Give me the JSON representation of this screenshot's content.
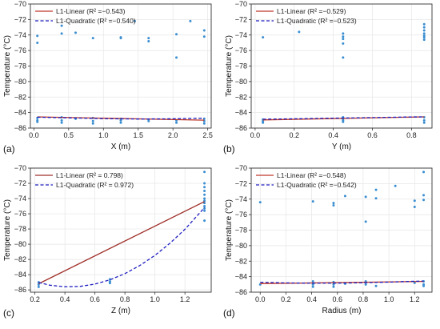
{
  "chart_data": [
    {
      "type": "scatter",
      "panel_label": "(a)",
      "xlabel": "X (m)",
      "ylabel": "Temperature (°C)",
      "xlim": [
        -0.05,
        2.55
      ],
      "ylim": [
        -86,
        -70
      ],
      "xticks": [
        0.0,
        0.5,
        1.0,
        1.5,
        2.0,
        2.5
      ],
      "xtick_labels": [
        "0.0",
        "0.5",
        "1.0",
        "1.5",
        "2.0",
        "2.5"
      ],
      "yticks": [
        -86,
        -84,
        -82,
        -80,
        -78,
        -76,
        -74,
        -72,
        -70
      ],
      "grid": true,
      "legend_position": "top-left",
      "points": [
        {
          "x": 0.05,
          "y": -74.1
        },
        {
          "x": 0.05,
          "y": -75.0
        },
        {
          "x": 0.05,
          "y": -84.7
        },
        {
          "x": 0.05,
          "y": -85.0
        },
        {
          "x": 0.05,
          "y": -85.2
        },
        {
          "x": 0.4,
          "y": -72.8
        },
        {
          "x": 0.4,
          "y": -73.8
        },
        {
          "x": 0.4,
          "y": -84.6
        },
        {
          "x": 0.4,
          "y": -85.0
        },
        {
          "x": 0.4,
          "y": -85.3
        },
        {
          "x": 0.6,
          "y": -73.7
        },
        {
          "x": 0.6,
          "y": -84.8
        },
        {
          "x": 0.85,
          "y": -74.4
        },
        {
          "x": 0.85,
          "y": -84.7
        },
        {
          "x": 0.85,
          "y": -85.1
        },
        {
          "x": 0.85,
          "y": -85.4
        },
        {
          "x": 1.25,
          "y": -74.3
        },
        {
          "x": 1.25,
          "y": -74.4
        },
        {
          "x": 1.25,
          "y": -84.8
        },
        {
          "x": 1.25,
          "y": -85.0
        },
        {
          "x": 1.25,
          "y": -85.3
        },
        {
          "x": 1.45,
          "y": -72.2
        },
        {
          "x": 1.65,
          "y": -74.4
        },
        {
          "x": 1.65,
          "y": -74.8
        },
        {
          "x": 1.65,
          "y": -84.9
        },
        {
          "x": 1.65,
          "y": -85.1
        },
        {
          "x": 2.05,
          "y": -73.9
        },
        {
          "x": 2.05,
          "y": -76.9
        },
        {
          "x": 2.05,
          "y": -85.0
        },
        {
          "x": 2.05,
          "y": -85.3
        },
        {
          "x": 2.25,
          "y": -72.2
        },
        {
          "x": 2.45,
          "y": -73.4
        },
        {
          "x": 2.45,
          "y": -74.2
        },
        {
          "x": 2.45,
          "y": -84.8
        },
        {
          "x": 2.45,
          "y": -85.1
        },
        {
          "x": 2.45,
          "y": -85.4
        }
      ],
      "series": [
        {
          "name": "L1-Linear (R² =−0.543)",
          "style": "solid",
          "color": "#c0392b",
          "x": [
            0.05,
            2.45
          ],
          "y": [
            -84.55,
            -84.98
          ]
        },
        {
          "name": "L1-Quadratic (R² =−0.540)",
          "style": "dashed",
          "color": "#1f1fbf",
          "x": [
            0.05,
            0.5,
            1.0,
            1.5,
            2.0,
            2.45
          ],
          "y": [
            -84.6,
            -84.68,
            -84.78,
            -84.83,
            -84.8,
            -84.72
          ]
        }
      ]
    },
    {
      "type": "scatter",
      "panel_label": "(b)",
      "xlabel": "Y (m)",
      "ylabel": "Temperature (°C)",
      "xlim": [
        -0.02,
        0.905
      ],
      "ylim": [
        -86,
        -70
      ],
      "xticks": [
        0.0,
        0.2,
        0.4,
        0.6,
        0.8
      ],
      "xtick_labels": [
        "0.0",
        "0.2",
        "0.4",
        "0.6",
        "0.8"
      ],
      "yticks": [
        -86,
        -84,
        -82,
        -80,
        -78,
        -76,
        -74,
        -72,
        -70
      ],
      "grid": true,
      "legend_position": "top-left",
      "points": [
        {
          "x": 0.04,
          "y": -74.3
        },
        {
          "x": 0.04,
          "y": -84.9
        },
        {
          "x": 0.04,
          "y": -85.1
        },
        {
          "x": 0.04,
          "y": -85.3
        },
        {
          "x": 0.225,
          "y": -73.6
        },
        {
          "x": 0.45,
          "y": -73.8
        },
        {
          "x": 0.45,
          "y": -74.2
        },
        {
          "x": 0.45,
          "y": -74.5
        },
        {
          "x": 0.45,
          "y": -75.1
        },
        {
          "x": 0.45,
          "y": -76.9
        },
        {
          "x": 0.45,
          "y": -84.6
        },
        {
          "x": 0.45,
          "y": -84.8
        },
        {
          "x": 0.45,
          "y": -85.0
        },
        {
          "x": 0.45,
          "y": -85.2
        },
        {
          "x": 0.865,
          "y": -72.6
        },
        {
          "x": 0.865,
          "y": -73.0
        },
        {
          "x": 0.865,
          "y": -73.4
        },
        {
          "x": 0.865,
          "y": -73.8
        },
        {
          "x": 0.865,
          "y": -74.1
        },
        {
          "x": 0.865,
          "y": -74.3
        },
        {
          "x": 0.865,
          "y": -74.6
        },
        {
          "x": 0.865,
          "y": -84.6
        },
        {
          "x": 0.865,
          "y": -85.0
        },
        {
          "x": 0.865,
          "y": -85.3
        }
      ],
      "series": [
        {
          "name": "L1-Linear (R² =−0.529)",
          "style": "solid",
          "color": "#c0392b",
          "x": [
            0.04,
            0.865
          ],
          "y": [
            -84.95,
            -84.55
          ]
        },
        {
          "name": "L1-Quadratic (R² =−0.523)",
          "style": "dashed",
          "color": "#1f1fbf",
          "x": [
            0.04,
            0.2,
            0.4,
            0.6,
            0.8,
            0.865
          ],
          "y": [
            -84.85,
            -84.8,
            -84.72,
            -84.65,
            -84.57,
            -84.55
          ]
        }
      ]
    },
    {
      "type": "scatter",
      "panel_label": "(c)",
      "xlabel": "Z (m)",
      "ylabel": "Temperature (°C)",
      "xlim": [
        0.17,
        1.375
      ],
      "ylim": [
        -86.3,
        -70
      ],
      "xticks": [
        0.2,
        0.4,
        0.6,
        0.8,
        1.0,
        1.2
      ],
      "xtick_labels": [
        "0.2",
        "0.4",
        "0.6",
        "0.8",
        "1.0",
        "1.2"
      ],
      "yticks": [
        -86,
        -84,
        -82,
        -80,
        -78,
        -76,
        -74,
        -72,
        -70
      ],
      "grid": true,
      "legend_position": "top-left",
      "points": [
        {
          "x": 0.225,
          "y": -85.0
        },
        {
          "x": 0.225,
          "y": -85.3
        },
        {
          "x": 0.225,
          "y": -85.6
        },
        {
          "x": 0.7,
          "y": -84.6
        },
        {
          "x": 0.7,
          "y": -84.9
        },
        {
          "x": 0.7,
          "y": -85.1
        },
        {
          "x": 1.33,
          "y": -70.5
        },
        {
          "x": 1.33,
          "y": -72.0
        },
        {
          "x": 1.33,
          "y": -72.5
        },
        {
          "x": 1.33,
          "y": -73.0
        },
        {
          "x": 1.33,
          "y": -73.5
        },
        {
          "x": 1.33,
          "y": -74.0
        },
        {
          "x": 1.33,
          "y": -74.3
        },
        {
          "x": 1.33,
          "y": -74.6
        },
        {
          "x": 1.33,
          "y": -75.0
        },
        {
          "x": 1.33,
          "y": -75.3
        },
        {
          "x": 1.33,
          "y": -75.6
        },
        {
          "x": 1.33,
          "y": -76.9
        }
      ],
      "series": [
        {
          "name": "L1-Linear (R² = 0.798)",
          "style": "solid",
          "color": "#a0302a",
          "x": [
            0.225,
            1.33
          ],
          "y": [
            -85.2,
            -74.4
          ]
        },
        {
          "name": "L1-Quadratic (R² = 0.972)",
          "style": "dashed",
          "color": "#1f1fbf",
          "x": [
            0.225,
            0.3,
            0.4,
            0.5,
            0.6,
            0.7,
            0.8,
            0.9,
            1.0,
            1.1,
            1.2,
            1.33
          ],
          "y": [
            -85.03,
            -85.38,
            -85.59,
            -85.54,
            -85.24,
            -84.68,
            -83.86,
            -82.79,
            -81.46,
            -79.87,
            -78.03,
            -75.2
          ]
        }
      ]
    },
    {
      "type": "scatter",
      "panel_label": "(d)",
      "xlabel": "Radius (m)",
      "ylabel": "Temperature (°C)",
      "xlim": [
        -0.07,
        1.335
      ],
      "ylim": [
        -86,
        -70
      ],
      "xticks": [
        0.0,
        0.2,
        0.4,
        0.6,
        0.8,
        1.0,
        1.2
      ],
      "xtick_labels": [
        "0.0",
        "0.2",
        "0.4",
        "0.6",
        "0.8",
        "1.0",
        "1.2"
      ],
      "yticks": [
        -86,
        -84,
        -82,
        -80,
        -78,
        -76,
        -74,
        -72,
        -70
      ],
      "grid": true,
      "legend_position": "top-left",
      "points": [
        {
          "x": 0.0,
          "y": -74.4
        },
        {
          "x": 0.0,
          "y": -85.0
        },
        {
          "x": 0.41,
          "y": -74.3
        },
        {
          "x": 0.41,
          "y": -84.6
        },
        {
          "x": 0.41,
          "y": -85.0
        },
        {
          "x": 0.41,
          "y": -85.3
        },
        {
          "x": 0.57,
          "y": -74.5
        },
        {
          "x": 0.57,
          "y": -74.8
        },
        {
          "x": 0.57,
          "y": -84.7
        },
        {
          "x": 0.57,
          "y": -85.0
        },
        {
          "x": 0.57,
          "y": -85.3
        },
        {
          "x": 0.66,
          "y": -73.6
        },
        {
          "x": 0.66,
          "y": -84.9
        },
        {
          "x": 0.82,
          "y": -73.7
        },
        {
          "x": 0.82,
          "y": -76.9
        },
        {
          "x": 0.82,
          "y": -84.6
        },
        {
          "x": 0.82,
          "y": -85.0
        },
        {
          "x": 0.9,
          "y": -72.8
        },
        {
          "x": 0.9,
          "y": -73.9
        },
        {
          "x": 0.9,
          "y": -85.2
        },
        {
          "x": 1.05,
          "y": -72.3
        },
        {
          "x": 1.2,
          "y": -74.2
        },
        {
          "x": 1.2,
          "y": -75.0
        },
        {
          "x": 1.2,
          "y": -84.8
        },
        {
          "x": 1.27,
          "y": -70.5
        },
        {
          "x": 1.27,
          "y": -73.5
        },
        {
          "x": 1.27,
          "y": -74.1
        },
        {
          "x": 1.27,
          "y": -84.6
        },
        {
          "x": 1.27,
          "y": -85.0
        },
        {
          "x": 1.27,
          "y": -85.2
        }
      ],
      "series": [
        {
          "name": "L1-Linear (R² =−0.548)",
          "style": "solid",
          "color": "#c0392b",
          "x": [
            0.0,
            1.27
          ],
          "y": [
            -84.9,
            -84.62
          ]
        },
        {
          "name": "L1-Quadratic (R² =−0.542)",
          "style": "dashed",
          "color": "#1f1fbf",
          "x": [
            0.0,
            0.2,
            0.4,
            0.6,
            0.8,
            1.0,
            1.2,
            1.27
          ],
          "y": [
            -84.72,
            -84.8,
            -84.84,
            -84.83,
            -84.78,
            -84.7,
            -84.6,
            -84.57
          ]
        }
      ]
    }
  ],
  "colors": {
    "points": "#3a8ed1",
    "grid": "#e6e6e6",
    "frame": "#333333"
  }
}
